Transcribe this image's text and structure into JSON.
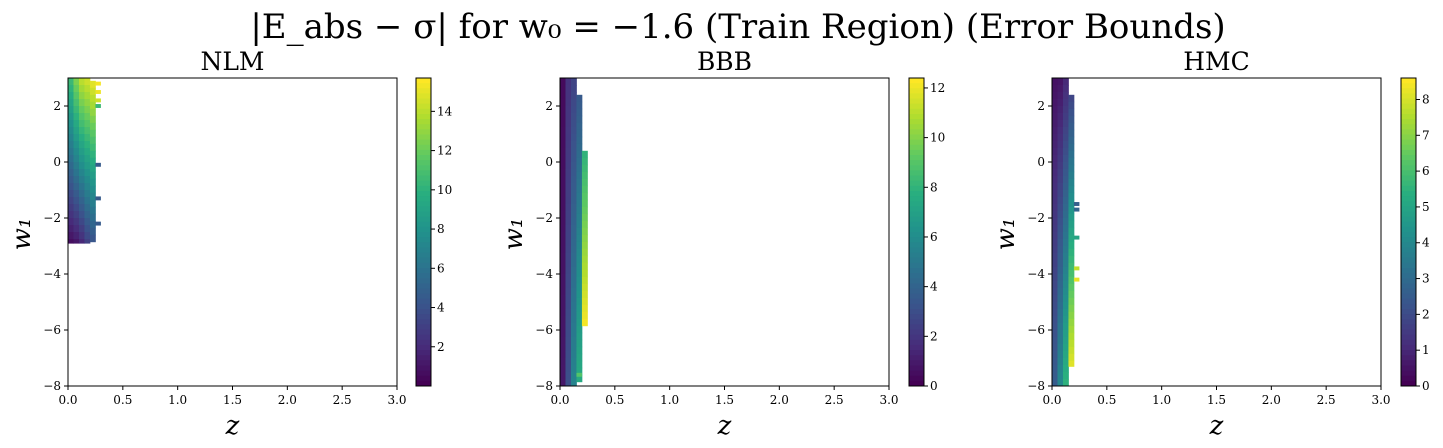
{
  "title": "|E_abs − σ| for w₀ = −1.6 (Train Region) (Error Bounds)",
  "chart_data": [
    {
      "type": "heatmap",
      "title": "NLM",
      "xlabel": "z",
      "ylabel": "w₁",
      "xlim": [
        0,
        3
      ],
      "ylim": [
        -8,
        3
      ],
      "xticks": [
        "0.0",
        "0.5",
        "1.0",
        "1.5",
        "2.0",
        "2.5",
        "3.0"
      ],
      "yticks": [
        "−8",
        "−6",
        "−4",
        "−2",
        "0",
        "2"
      ],
      "colorbar": {
        "min": 0,
        "max": 15.7,
        "ticks": [
          "2",
          "4",
          "6",
          "8",
          "10",
          "12",
          "14"
        ]
      },
      "colormap": [
        "#440154",
        "#472d7b",
        "#3b528b",
        "#2c728e",
        "#21918c",
        "#28ae80",
        "#5ec962",
        "#addc30",
        "#fde725"
      ],
      "cell_width": 0.05,
      "cell_height": 0.25,
      "columns": [
        {
          "x": 0.05,
          "y_top": 3.0,
          "y_bottom": -2.9,
          "value_top": 10.5,
          "value_bottom": 0.6
        },
        {
          "x": 0.1,
          "y_top": 3.0,
          "y_bottom": -2.9,
          "value_top": 12.5,
          "value_bottom": 1.0
        },
        {
          "x": 0.15,
          "y_top": 3.0,
          "y_bottom": -2.9,
          "value_top": 14.0,
          "value_bottom": 1.8
        },
        {
          "x": 0.2,
          "y_top": 3.0,
          "y_bottom": -2.9,
          "value_top": 14.5,
          "value_bottom": 3.0
        },
        {
          "x": 0.25,
          "y_top": 2.9,
          "y_bottom": -2.9,
          "value_top": 15.0,
          "value_bottom": 4.2
        }
      ],
      "dashes": [
        {
          "x": 0.3,
          "y": 2.8,
          "value": 15.5
        },
        {
          "x": 0.3,
          "y": 2.5,
          "value": 15.3
        },
        {
          "x": 0.3,
          "y": 2.2,
          "value": 14.5
        },
        {
          "x": 0.3,
          "y": 2.0,
          "value": 10.5
        },
        {
          "x": 0.3,
          "y": -0.1,
          "value": 4.5
        },
        {
          "x": 0.3,
          "y": -1.3,
          "value": 4.5
        },
        {
          "x": 0.3,
          "y": -2.2,
          "value": 4.5
        }
      ]
    },
    {
      "type": "heatmap",
      "title": "BBB",
      "xlabel": "z",
      "ylabel": "w₁",
      "xlim": [
        0,
        3
      ],
      "ylim": [
        -8,
        3
      ],
      "xticks": [
        "0.0",
        "0.5",
        "1.0",
        "1.5",
        "2.0",
        "2.5",
        "3.0"
      ],
      "yticks": [
        "−8",
        "−6",
        "−4",
        "−2",
        "0",
        "2"
      ],
      "colorbar": {
        "min": 0,
        "max": 12.4,
        "ticks": [
          "0",
          "2",
          "4",
          "6",
          "8",
          "10",
          "12"
        ]
      },
      "colormap": [
        "#440154",
        "#472d7b",
        "#3b528b",
        "#2c728e",
        "#21918c",
        "#28ae80",
        "#5ec962",
        "#addc30",
        "#fde725"
      ],
      "cell_width": 0.05,
      "cell_height": 0.25,
      "columns": [
        {
          "x": 0.05,
          "y_top": 3.0,
          "y_bottom": -8.0,
          "value_top": 0.3,
          "value_bottom": 0.8
        },
        {
          "x": 0.1,
          "y_top": 3.0,
          "y_bottom": -8.0,
          "value_top": 1.8,
          "value_bottom": 3.0
        },
        {
          "x": 0.15,
          "y_top": 3.0,
          "y_bottom": -8.0,
          "value_top": 2.5,
          "value_bottom": 5.5
        },
        {
          "x": 0.2,
          "y_top": 2.4,
          "y_bottom": -7.9,
          "value_top": 3.5,
          "value_bottom": 7.5
        },
        {
          "x": 0.25,
          "y_top": 0.4,
          "y_bottom": -5.9,
          "value_top": 8.0,
          "value_bottom": 12.2
        }
      ],
      "dashes": [
        {
          "x": 0.2,
          "y": -7.6,
          "value": 9.0
        }
      ]
    },
    {
      "type": "heatmap",
      "title": "HMC",
      "xlabel": "z",
      "ylabel": "w₁",
      "xlim": [
        0,
        3
      ],
      "ylim": [
        -8,
        3
      ],
      "xticks": [
        "0.0",
        "0.5",
        "1.0",
        "1.5",
        "2.0",
        "2.5",
        "3.0"
      ],
      "yticks": [
        "−8",
        "−6",
        "−4",
        "−2",
        "0",
        "2"
      ],
      "colorbar": {
        "min": 0,
        "max": 8.6,
        "ticks": [
          "0",
          "1",
          "2",
          "3",
          "4",
          "5",
          "6",
          "7",
          "8"
        ]
      },
      "colormap": [
        "#440154",
        "#472d7b",
        "#3b528b",
        "#2c728e",
        "#21918c",
        "#28ae80",
        "#5ec962",
        "#addc30",
        "#fde725"
      ],
      "cell_width": 0.05,
      "cell_height": 0.25,
      "columns": [
        {
          "x": 0.05,
          "y_top": 3.0,
          "y_bottom": -8.0,
          "value_top": 0.4,
          "value_bottom": 2.5
        },
        {
          "x": 0.1,
          "y_top": 3.0,
          "y_bottom": -8.0,
          "value_top": 0.5,
          "value_bottom": 4.0
        },
        {
          "x": 0.15,
          "y_top": 3.0,
          "y_bottom": -8.0,
          "value_top": 1.0,
          "value_bottom": 5.5
        },
        {
          "x": 0.2,
          "y_top": 2.4,
          "y_bottom": -7.3,
          "value_top": 1.8,
          "value_bottom": 8.2
        }
      ],
      "dashes": [
        {
          "x": 0.25,
          "y": -1.5,
          "value": 2.6
        },
        {
          "x": 0.25,
          "y": -1.7,
          "value": 2.8
        },
        {
          "x": 0.25,
          "y": -2.7,
          "value": 5.0
        },
        {
          "x": 0.25,
          "y": -3.8,
          "value": 7.8
        },
        {
          "x": 0.25,
          "y": -4.2,
          "value": 8.3
        }
      ]
    }
  ]
}
